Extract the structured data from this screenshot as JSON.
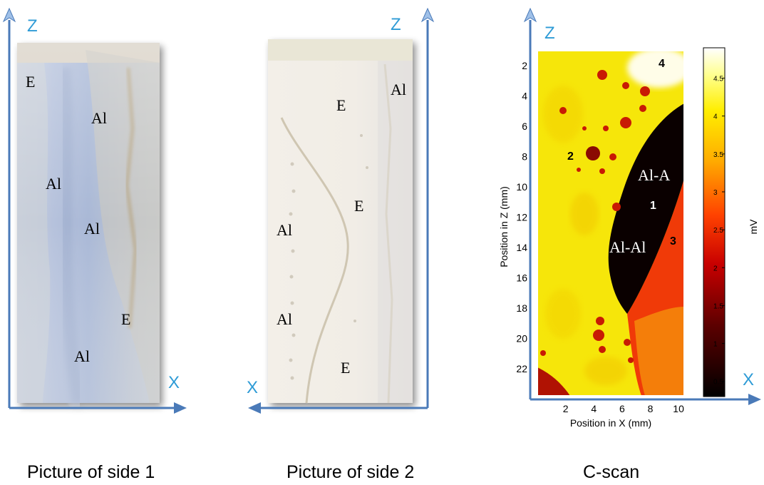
{
  "panel1": {
    "caption": "Picture of side 1",
    "axis_vertical": "Z",
    "axis_horizontal": "X",
    "labels": [
      "E",
      "Al",
      "Al",
      "Al",
      "E",
      "Al"
    ]
  },
  "panel2": {
    "caption": "Picture of side 2",
    "axis_vertical": "Z",
    "axis_horizontal": "X",
    "labels": [
      "Al",
      "E",
      "E",
      "Al",
      "Al",
      "E"
    ]
  },
  "panel3": {
    "caption": "C-scan",
    "axis_vertical": "Z",
    "axis_horizontal": "X",
    "xlabel": "Position in X (mm)",
    "ylabel": "Position in Z (mm)",
    "xticks": [
      "2",
      "4",
      "6",
      "8",
      "10"
    ],
    "yticks": [
      "2",
      "4",
      "6",
      "8",
      "10",
      "12",
      "14",
      "16",
      "18",
      "20",
      "22"
    ],
    "colorbar_label": "mV",
    "colorbar_ticks": [
      "0.5",
      "1",
      "1.5",
      "2",
      "2.5",
      "3",
      "3.5",
      "4",
      "4.5"
    ],
    "labels": [
      "4",
      "2",
      "Al-A",
      "1",
      "3",
      "Al-Al"
    ]
  },
  "colors": {
    "axis_arrow": "#4a7ab8",
    "axis_letter": "#2e9bd6",
    "scan_bright": "#f6e60a",
    "scan_dark": "#0a0000",
    "scan_red": "#d81e05"
  },
  "chart_data": {
    "type": "heatmap",
    "title": "C-scan",
    "xlabel": "Position in X (mm)",
    "ylabel": "Position in Z (mm)",
    "xlim": [
      0,
      10.4
    ],
    "ylim": [
      23.8,
      1
    ],
    "xticks": [
      2,
      4,
      6,
      8,
      10
    ],
    "yticks": [
      2,
      4,
      6,
      8,
      10,
      12,
      14,
      16,
      18,
      20,
      22
    ],
    "colorbar": {
      "label": "mV",
      "range": [
        0.3,
        4.9
      ],
      "ticks": [
        0.5,
        1,
        1.5,
        2,
        2.5,
        3,
        3.5,
        4,
        4.5
      ]
    },
    "regions": [
      {
        "label": "2",
        "description": "mostly bright yellow region",
        "level_mV": 3.8,
        "at": [
          2.2,
          8.2
        ]
      },
      {
        "label": "1",
        "description": "dark band",
        "level_mV": 0.3,
        "at": [
          8.5,
          11.8
        ]
      },
      {
        "label": "3",
        "description": "red-orange region",
        "level_mV": 2.2,
        "at": [
          9.4,
          14.0
        ]
      },
      {
        "label": "4",
        "description": "near-white corner",
        "level_mV": 4.6,
        "at": [
          8.2,
          1.9
        ]
      }
    ]
  }
}
